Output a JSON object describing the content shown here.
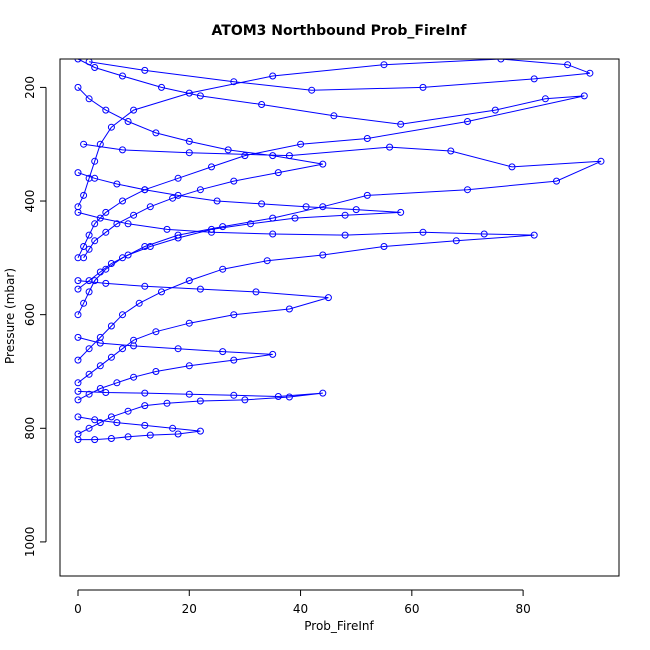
{
  "chart_data": {
    "type": "scatter",
    "title": "ATOM3 Northbound Prob_FireInf",
    "xlabel": "Prob_FireInf",
    "ylabel": "Pressure (mbar)",
    "xlim": [
      0,
      94
    ],
    "ylim": [
      1060,
      150
    ],
    "y_reversed": true,
    "x_ticks": [
      0,
      20,
      40,
      60,
      80
    ],
    "y_ticks": [
      200,
      400,
      600,
      800,
      1000
    ],
    "grid": false,
    "legend": "none",
    "point_style": "open-circle-with-lines",
    "series_color": "#0000ff",
    "series": [
      {
        "points": [
          [
            0,
            150
          ],
          [
            3,
            165
          ],
          [
            8,
            180
          ],
          [
            15,
            200
          ],
          [
            22,
            215
          ],
          [
            33,
            230
          ],
          [
            46,
            250
          ],
          [
            58,
            265
          ],
          [
            75,
            240
          ],
          [
            84,
            220
          ],
          [
            91,
            215
          ],
          [
            70,
            260
          ],
          [
            52,
            290
          ],
          [
            40,
            300
          ],
          [
            30,
            320
          ],
          [
            24,
            340
          ],
          [
            18,
            360
          ],
          [
            12,
            380
          ],
          [
            8,
            400
          ],
          [
            5,
            420
          ],
          [
            3,
            440
          ],
          [
            2,
            460
          ],
          [
            1,
            480
          ],
          [
            0,
            500
          ]
        ]
      },
      {
        "points": [
          [
            2,
            155
          ],
          [
            12,
            170
          ],
          [
            28,
            190
          ],
          [
            42,
            205
          ],
          [
            62,
            200
          ],
          [
            82,
            185
          ],
          [
            92,
            175
          ],
          [
            88,
            160
          ],
          [
            76,
            150
          ],
          [
            55,
            160
          ],
          [
            35,
            180
          ],
          [
            20,
            210
          ],
          [
            10,
            240
          ],
          [
            6,
            270
          ],
          [
            4,
            300
          ],
          [
            3,
            330
          ],
          [
            2,
            360
          ],
          [
            1,
            390
          ],
          [
            0,
            410
          ]
        ]
      },
      {
        "points": [
          [
            1,
            300
          ],
          [
            8,
            310
          ],
          [
            20,
            315
          ],
          [
            38,
            320
          ],
          [
            56,
            305
          ],
          [
            67,
            312
          ],
          [
            78,
            340
          ],
          [
            94,
            330
          ],
          [
            86,
            365
          ],
          [
            70,
            380
          ],
          [
            52,
            390
          ],
          [
            44,
            410
          ],
          [
            35,
            430
          ],
          [
            26,
            445
          ],
          [
            18,
            460
          ],
          [
            12,
            480
          ],
          [
            8,
            500
          ],
          [
            5,
            520
          ],
          [
            3,
            540
          ],
          [
            2,
            560
          ],
          [
            1,
            580
          ],
          [
            0,
            600
          ]
        ]
      },
      {
        "points": [
          [
            0,
            420
          ],
          [
            4,
            430
          ],
          [
            9,
            440
          ],
          [
            16,
            450
          ],
          [
            24,
            455
          ],
          [
            35,
            458
          ],
          [
            48,
            460
          ],
          [
            62,
            455
          ],
          [
            73,
            458
          ],
          [
            82,
            460
          ],
          [
            68,
            470
          ],
          [
            55,
            480
          ],
          [
            44,
            495
          ],
          [
            34,
            505
          ],
          [
            26,
            520
          ],
          [
            20,
            540
          ],
          [
            15,
            560
          ],
          [
            11,
            580
          ],
          [
            8,
            600
          ],
          [
            6,
            620
          ],
          [
            4,
            640
          ],
          [
            2,
            660
          ],
          [
            0,
            680
          ]
        ]
      },
      {
        "points": [
          [
            0,
            540
          ],
          [
            5,
            545
          ],
          [
            12,
            550
          ],
          [
            22,
            555
          ],
          [
            32,
            560
          ],
          [
            45,
            570
          ],
          [
            38,
            590
          ],
          [
            28,
            600
          ],
          [
            20,
            615
          ],
          [
            14,
            630
          ],
          [
            10,
            645
          ],
          [
            8,
            660
          ],
          [
            6,
            675
          ],
          [
            4,
            690
          ],
          [
            2,
            705
          ],
          [
            0,
            720
          ]
        ]
      },
      {
        "points": [
          [
            0,
            640
          ],
          [
            4,
            650
          ],
          [
            10,
            655
          ],
          [
            18,
            660
          ],
          [
            26,
            665
          ],
          [
            35,
            670
          ],
          [
            28,
            680
          ],
          [
            20,
            690
          ],
          [
            14,
            700
          ],
          [
            10,
            710
          ],
          [
            7,
            720
          ],
          [
            4,
            730
          ],
          [
            2,
            740
          ],
          [
            0,
            750
          ]
        ]
      },
      {
        "points": [
          [
            0,
            735
          ],
          [
            5,
            737
          ],
          [
            12,
            738
          ],
          [
            20,
            740
          ],
          [
            28,
            742
          ],
          [
            36,
            744
          ],
          [
            44,
            738
          ],
          [
            38,
            745
          ],
          [
            30,
            750
          ],
          [
            22,
            752
          ],
          [
            16,
            756
          ],
          [
            12,
            760
          ],
          [
            9,
            770
          ],
          [
            6,
            780
          ],
          [
            4,
            790
          ],
          [
            2,
            800
          ],
          [
            0,
            810
          ]
        ]
      },
      {
        "points": [
          [
            0,
            780
          ],
          [
            3,
            785
          ],
          [
            7,
            790
          ],
          [
            12,
            795
          ],
          [
            17,
            800
          ],
          [
            22,
            805
          ],
          [
            18,
            810
          ],
          [
            13,
            812
          ],
          [
            9,
            815
          ],
          [
            6,
            818
          ],
          [
            3,
            820
          ],
          [
            0,
            820
          ]
        ]
      },
      {
        "points": [
          [
            0,
            200
          ],
          [
            2,
            220
          ],
          [
            5,
            240
          ],
          [
            9,
            260
          ],
          [
            14,
            280
          ],
          [
            20,
            295
          ],
          [
            27,
            310
          ],
          [
            35,
            320
          ],
          [
            44,
            335
          ],
          [
            36,
            350
          ],
          [
            28,
            365
          ],
          [
            22,
            380
          ],
          [
            17,
            395
          ],
          [
            13,
            410
          ],
          [
            10,
            425
          ],
          [
            7,
            440
          ],
          [
            5,
            455
          ],
          [
            3,
            470
          ],
          [
            2,
            485
          ],
          [
            1,
            500
          ]
        ]
      },
      {
        "points": [
          [
            0,
            350
          ],
          [
            3,
            360
          ],
          [
            7,
            370
          ],
          [
            12,
            380
          ],
          [
            18,
            390
          ],
          [
            25,
            400
          ],
          [
            33,
            405
          ],
          [
            41,
            410
          ],
          [
            50,
            415
          ],
          [
            58,
            420
          ],
          [
            48,
            425
          ],
          [
            39,
            430
          ],
          [
            31,
            440
          ],
          [
            24,
            450
          ],
          [
            18,
            465
          ],
          [
            13,
            480
          ],
          [
            9,
            495
          ],
          [
            6,
            510
          ],
          [
            4,
            525
          ],
          [
            2,
            540
          ],
          [
            0,
            555
          ]
        ]
      }
    ]
  }
}
